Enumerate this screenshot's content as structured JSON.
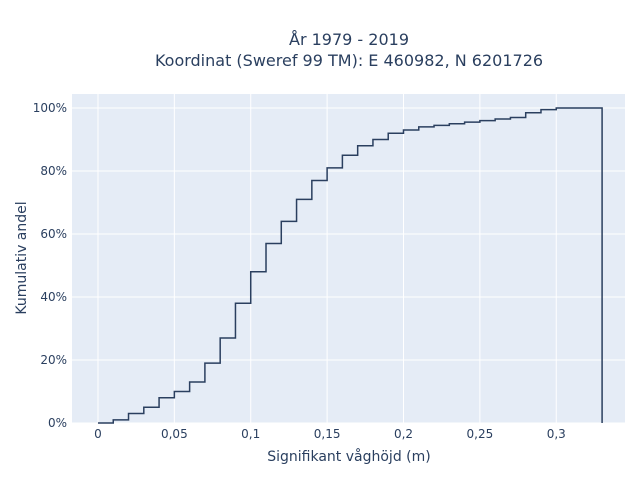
{
  "chart_data": {
    "type": "line",
    "subtype": "cumulative-step",
    "title_line1": "År 1979 - 2019",
    "title_line2": "Koordinat (Sweref 99 TM): E 460982, N 6201726",
    "xlabel": "Signifikant våghöjd (m)",
    "ylabel": "Kumulativ andel",
    "xlim": [
      -0.017,
      0.345
    ],
    "ylim": [
      0,
      100
    ],
    "xticks": [
      0,
      0.05,
      0.1,
      0.15,
      0.2,
      0.25,
      0.3
    ],
    "xtick_labels": [
      "0",
      "0,05",
      "0,1",
      "0,15",
      "0,2",
      "0,25",
      "0,3"
    ],
    "yticks": [
      0,
      20,
      40,
      60,
      80,
      100
    ],
    "ytick_labels": [
      "0%",
      "20%",
      "40%",
      "60%",
      "80%",
      "100%"
    ],
    "grid": true,
    "series": [
      {
        "x": [
          0,
          0.005,
          0.01,
          0.015,
          0.02,
          0.025,
          0.03,
          0.035,
          0.04,
          0.045,
          0.05,
          0.055,
          0.06,
          0.065,
          0.07,
          0.075,
          0.08,
          0.085,
          0.09,
          0.095,
          0.1,
          0.105,
          0.11,
          0.115,
          0.12,
          0.125,
          0.13,
          0.135,
          0.14,
          0.145,
          0.15,
          0.155,
          0.16,
          0.165,
          0.17,
          0.175,
          0.18,
          0.185,
          0.19,
          0.195,
          0.2,
          0.205,
          0.21,
          0.215,
          0.22,
          0.225,
          0.23,
          0.235,
          0.24,
          0.245,
          0.25,
          0.255,
          0.26,
          0.265,
          0.27,
          0.275,
          0.28,
          0.285,
          0.29,
          0.295,
          0.3,
          0.305,
          0.31,
          0.315,
          0.32,
          0.325,
          0.33
        ],
        "y": [
          0,
          0,
          1,
          1,
          3,
          3,
          5,
          5,
          8,
          8,
          10,
          10,
          13,
          13,
          19,
          19,
          27,
          27,
          38,
          38,
          48,
          48,
          57,
          57,
          64,
          64,
          71,
          71,
          77,
          77,
          81,
          81,
          85,
          85,
          88,
          88,
          90,
          90,
          92,
          92,
          93,
          93,
          94,
          94,
          94.5,
          94.5,
          95,
          95,
          95.5,
          95.5,
          96,
          96,
          96.5,
          96.5,
          97,
          97,
          98.5,
          98.5,
          99.5,
          99.5,
          100,
          100,
          100,
          100,
          100,
          100,
          100
        ],
        "color": "#2a3f5f"
      }
    ]
  }
}
